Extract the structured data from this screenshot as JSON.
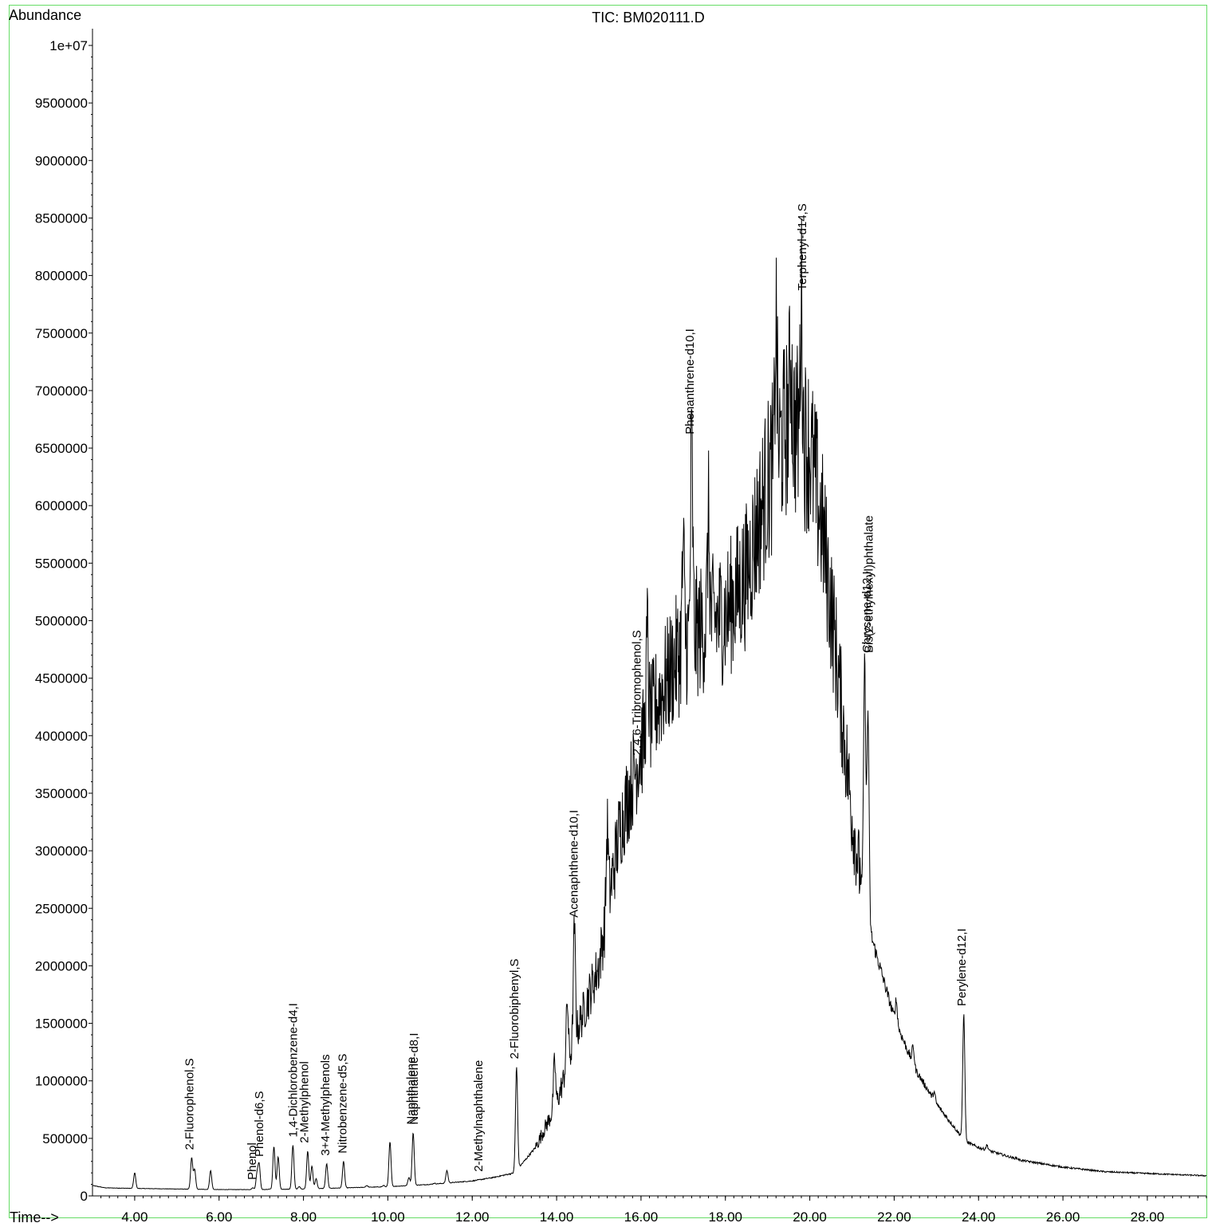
{
  "chart_data": {
    "type": "line",
    "title": "TIC: BM020111.D",
    "ylabel": "Abundance",
    "xlabel": "Time-->",
    "xlim": [
      3.0,
      29.4
    ],
    "ylim": [
      0,
      10400000
    ],
    "x_ticks": [
      4,
      6,
      8,
      10,
      12,
      14,
      16,
      18,
      20,
      22,
      24,
      26,
      28
    ],
    "x_tick_labels": [
      "4.00",
      "6.00",
      "8.00",
      "10.00",
      "12.00",
      "14.00",
      "16.00",
      "18.00",
      "20.00",
      "22.00",
      "24.00",
      "26.00",
      "28.00"
    ],
    "y_ticks": [
      0,
      500000,
      1000000,
      1500000,
      2000000,
      2500000,
      3000000,
      3500000,
      4000000,
      4500000,
      5000000,
      5500000,
      6000000,
      6500000,
      7000000,
      7500000,
      8000000,
      8500000,
      9000000,
      9500000,
      10000000
    ],
    "y_tick_labels": [
      "0",
      "500000",
      "1000000",
      "1500000",
      "2000000",
      "2500000",
      "3000000",
      "3500000",
      "4000000",
      "4500000",
      "5000000",
      "5500000",
      "6000000",
      "6500000",
      "7000000",
      "7500000",
      "8000000",
      "8500000",
      "9000000",
      "9500000",
      "1e+07"
    ],
    "color": "#000000",
    "baseline": [
      [
        3.0,
        90000
      ],
      [
        3.3,
        70000
      ],
      [
        4.0,
        65000
      ],
      [
        5.0,
        60000
      ],
      [
        6.0,
        55000
      ],
      [
        7.0,
        55000
      ],
      [
        8.0,
        60000
      ],
      [
        9.0,
        70000
      ],
      [
        10.0,
        80000
      ],
      [
        11.0,
        100000
      ],
      [
        12.0,
        130000
      ],
      [
        12.5,
        160000
      ],
      [
        13.0,
        200000
      ],
      [
        13.5,
        420000
      ],
      [
        14.0,
        800000
      ],
      [
        14.5,
        1450000
      ],
      [
        15.0,
        2000000
      ],
      [
        15.5,
        3200000
      ],
      [
        16.0,
        3900000
      ],
      [
        16.5,
        4400000
      ],
      [
        17.0,
        4800000
      ],
      [
        17.5,
        4950000
      ],
      [
        18.0,
        5050000
      ],
      [
        18.5,
        5400000
      ],
      [
        19.0,
        6200000
      ],
      [
        19.5,
        6750000
      ],
      [
        20.0,
        6500000
      ],
      [
        20.3,
        5800000
      ],
      [
        20.6,
        4800000
      ],
      [
        21.0,
        3300000
      ],
      [
        21.3,
        2500000
      ],
      [
        21.5,
        2200000
      ],
      [
        22.0,
        1550000
      ],
      [
        22.5,
        1100000
      ],
      [
        23.0,
        800000
      ],
      [
        23.5,
        560000
      ],
      [
        23.7,
        470000
      ],
      [
        24.0,
        420000
      ],
      [
        25.0,
        310000
      ],
      [
        26.0,
        250000
      ],
      [
        27.0,
        210000
      ],
      [
        28.0,
        195000
      ],
      [
        29.4,
        175000
      ]
    ],
    "peaks": [
      [
        4.0,
        200000
      ],
      [
        4.45,
        50000
      ],
      [
        5.35,
        330000
      ],
      [
        5.42,
        230000
      ],
      [
        5.8,
        220000
      ],
      [
        6.8,
        70000
      ],
      [
        6.9,
        190000
      ],
      [
        6.95,
        270000
      ],
      [
        7.2,
        60000
      ],
      [
        7.3,
        430000
      ],
      [
        7.4,
        340000
      ],
      [
        7.75,
        440000
      ],
      [
        7.9,
        80000
      ],
      [
        8.1,
        390000
      ],
      [
        8.2,
        260000
      ],
      [
        8.3,
        150000
      ],
      [
        8.55,
        280000
      ],
      [
        8.95,
        300000
      ],
      [
        9.5,
        90000
      ],
      [
        9.9,
        90000
      ],
      [
        10.05,
        470000
      ],
      [
        10.5,
        160000
      ],
      [
        10.6,
        550000
      ],
      [
        10.8,
        80000
      ],
      [
        11.1,
        110000
      ],
      [
        11.4,
        220000
      ],
      [
        12.25,
        140000
      ],
      [
        13.05,
        1120000
      ],
      [
        13.95,
        1180000
      ],
      [
        14.25,
        1700000
      ],
      [
        14.42,
        2350000
      ],
      [
        15.2,
        3200000
      ],
      [
        16.15,
        4900000
      ],
      [
        17.0,
        5600000
      ],
      [
        17.2,
        6550000
      ],
      [
        17.6,
        5900000
      ],
      [
        19.2,
        7600000
      ],
      [
        19.55,
        7350000
      ],
      [
        19.8,
        7800000
      ],
      [
        21.3,
        4650000
      ],
      [
        21.38,
        4200000
      ],
      [
        22.05,
        1700000
      ],
      [
        22.45,
        1300000
      ],
      [
        22.95,
        900000
      ],
      [
        23.65,
        1580000
      ],
      [
        24.2,
        440000
      ],
      [
        24.9,
        330000
      ]
    ],
    "annotations": [
      {
        "label": "2-Fluorophenol,S",
        "x": 5.3
      },
      {
        "label": "Phenol-d6,S",
        "x": 6.95
      },
      {
        "label": "Phenol",
        "x": 6.78
      },
      {
        "label": "1,4-Dichlorobenzene-d4,I",
        "x": 7.75
      },
      {
        "label": "2-Methylphenol",
        "x": 8.02
      },
      {
        "label": "3+4-Methylphenols",
        "x": 8.52
      },
      {
        "label": "Nitrobenzene-d5,S",
        "x": 8.92
      },
      {
        "label": "Naphthalene-d8,I",
        "x": 10.62
      },
      {
        "label": "Naphthalene",
        "x": 10.55
      },
      {
        "label": "2-Methylnaphthalene",
        "x": 12.15
      },
      {
        "label": "2-Fluorobiphenyl,S",
        "x": 13.0
      },
      {
        "label": "Acenaphthene-d10,I",
        "x": 14.4
      },
      {
        "label": "2,4,6-Tribromophenol,S",
        "x": 15.9
      },
      {
        "label": "Phenanthrene-d10,I",
        "x": 17.15
      },
      {
        "label": "Terphenyl-d14,S",
        "x": 19.82
      },
      {
        "label": "Chrysene-d12,I",
        "x": 21.35
      },
      {
        "label": "Bis(2-ethylhexyl)phthalate",
        "x": 21.4
      },
      {
        "label": "Perylene-d12,I",
        "x": 23.6
      }
    ]
  }
}
